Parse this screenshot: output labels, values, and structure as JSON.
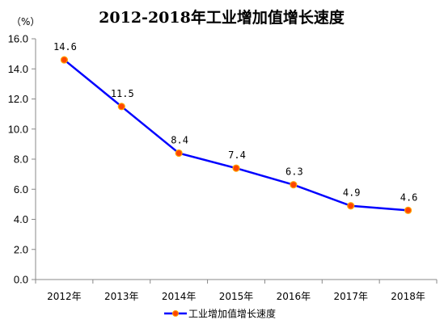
{
  "chart_data": {
    "type": "line",
    "title": "2012-2018年工业增加值增长速度",
    "unit_label": "（%）",
    "categories": [
      "2012年",
      "2013年",
      "2014年",
      "2015年",
      "2016年",
      "2017年",
      "2018年"
    ],
    "series": [
      {
        "name": "工业增加值增长速度",
        "values": [
          14.6,
          11.5,
          8.4,
          7.4,
          6.3,
          4.9,
          4.6
        ],
        "data_labels": [
          "14.6",
          "11.5",
          "8.4",
          "7.4",
          "6.3",
          "4.9",
          "4.6"
        ]
      }
    ],
    "ylim": [
      0,
      16
    ],
    "yticks": [
      "0.0",
      "2.0",
      "4.0",
      "6.0",
      "8.0",
      "10.0",
      "12.0",
      "14.0",
      "16.0"
    ],
    "grid": false,
    "legend_position": "bottom-center",
    "colors": {
      "line": "#0000ff",
      "marker_fill": "#ff4500",
      "marker_edge": "#ffa500",
      "axis": "#888888"
    }
  }
}
